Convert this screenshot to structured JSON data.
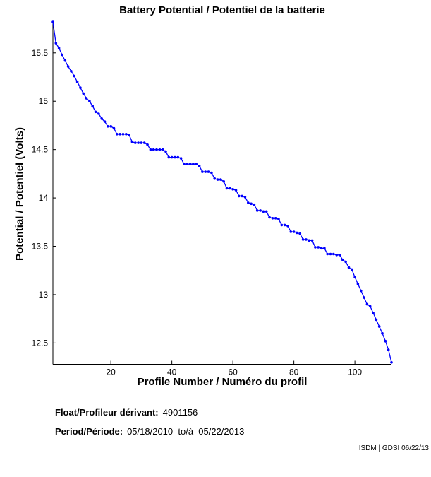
{
  "title": "Battery Potential / Potentiel de la batterie",
  "chart_data": {
    "type": "line",
    "title": "Battery Potential / Potentiel de la batterie",
    "xlabel": "Profile Number / Numéro du profil",
    "ylabel": "Potential / Potentiel (Volts)",
    "x_start": 1,
    "xlim": [
      1,
      112
    ],
    "ylim": [
      12.28,
      15.82
    ],
    "xticks": [
      20,
      40,
      60,
      80,
      100
    ],
    "yticks": [
      12.5,
      13,
      13.5,
      14,
      14.5,
      15,
      15.5
    ],
    "grid": false,
    "legend": "none",
    "line_color": "#0000FF",
    "axis_color": "#000000",
    "marker": "dot",
    "values": [
      15.82,
      15.6,
      15.55,
      15.48,
      15.42,
      15.36,
      15.31,
      15.26,
      15.2,
      15.14,
      15.08,
      15.03,
      15.0,
      14.95,
      14.89,
      14.87,
      14.82,
      14.79,
      14.74,
      14.74,
      14.72,
      14.66,
      14.66,
      14.66,
      14.66,
      14.65,
      14.58,
      14.57,
      14.57,
      14.57,
      14.57,
      14.55,
      14.5,
      14.5,
      14.5,
      14.5,
      14.5,
      14.48,
      14.42,
      14.42,
      14.42,
      14.42,
      14.41,
      14.35,
      14.35,
      14.35,
      14.35,
      14.35,
      14.33,
      14.27,
      14.27,
      14.27,
      14.26,
      14.2,
      14.19,
      14.19,
      14.17,
      14.1,
      14.1,
      14.09,
      14.08,
      14.02,
      14.02,
      14.01,
      13.95,
      13.94,
      13.93,
      13.87,
      13.87,
      13.86,
      13.86,
      13.8,
      13.79,
      13.79,
      13.78,
      13.72,
      13.72,
      13.71,
      13.65,
      13.65,
      13.64,
      13.63,
      13.57,
      13.57,
      13.56,
      13.56,
      13.49,
      13.49,
      13.48,
      13.48,
      13.42,
      13.42,
      13.42,
      13.41,
      13.41,
      13.36,
      13.34,
      13.28,
      13.26,
      13.18,
      13.11,
      13.04,
      12.97,
      12.9,
      12.88,
      12.81,
      12.74,
      12.67,
      12.6,
      12.52,
      12.43,
      12.3
    ]
  },
  "footer": {
    "float_label": "Float/Profileur dérivant:",
    "float_value": "4901156",
    "period_label": "Period/Période:",
    "period_value": "05/18/2010  to/à  05/22/2013",
    "stamp": "ISDM | GDSI 06/22/13"
  }
}
